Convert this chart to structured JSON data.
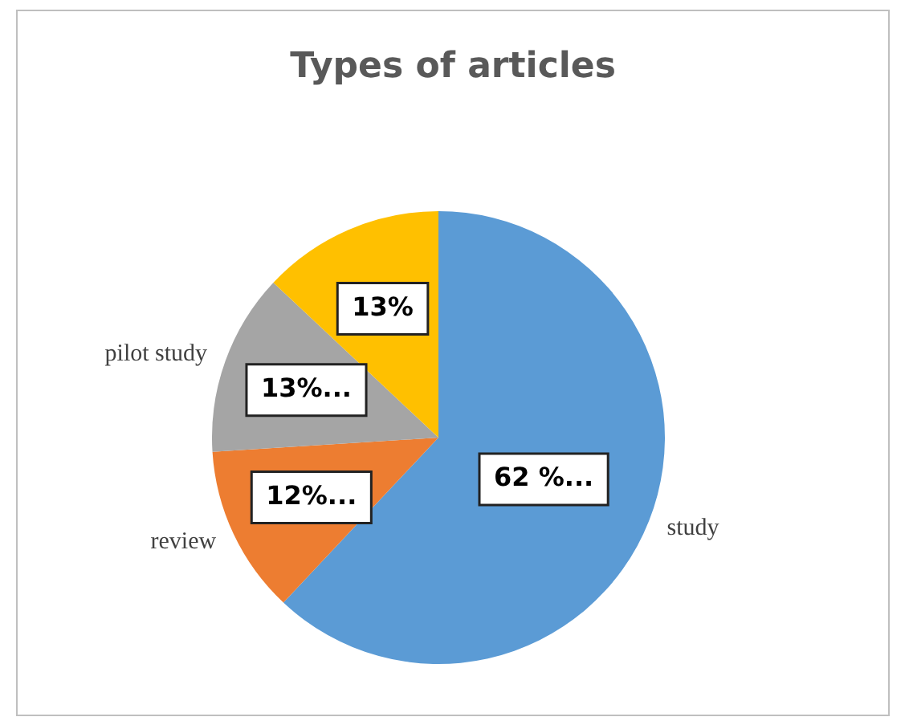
{
  "chart_data": {
    "type": "pie",
    "title": "Types of articles",
    "categories": [
      "study",
      "review",
      "pilot study",
      null
    ],
    "values": [
      62,
      12,
      13,
      13
    ],
    "colors": [
      "#5b9bd5",
      "#ed7d31",
      "#a5a5a5",
      "#ffc000"
    ],
    "value_labels": [
      "62 %...",
      "12%...",
      "13%...",
      "13%"
    ],
    "legend": false
  }
}
